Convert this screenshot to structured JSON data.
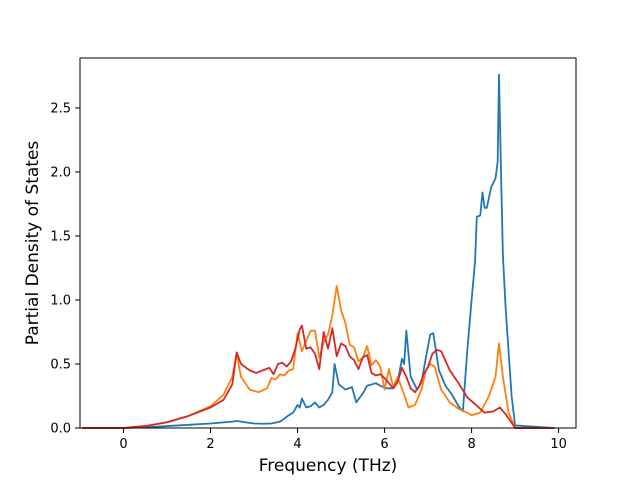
{
  "chart_data": {
    "type": "line",
    "xlabel": "Frequency (THz)",
    "ylabel": "Partial Density of States",
    "xlim": [
      -1.0,
      10.4
    ],
    "ylim": [
      0.0,
      2.89
    ],
    "xticks": [
      0,
      2,
      4,
      6,
      8,
      10
    ],
    "yticks": [
      0.0,
      0.5,
      1.0,
      1.5,
      2.0,
      2.5
    ],
    "xtick_labels": [
      "0",
      "2",
      "4",
      "6",
      "8",
      "10"
    ],
    "ytick_labels": [
      "0.0",
      "0.5",
      "1.0",
      "1.5",
      "2.0",
      "2.5"
    ],
    "grid": false,
    "legend": false,
    "series": [
      {
        "color": "#1f77b4",
        "points": [
          [
            -0.95,
            0.0
          ],
          [
            0.0,
            0.0
          ],
          [
            0.5,
            0.005
          ],
          [
            1.0,
            0.015
          ],
          [
            1.5,
            0.025
          ],
          [
            2.0,
            0.035
          ],
          [
            2.5,
            0.05
          ],
          [
            2.6,
            0.055
          ],
          [
            2.8,
            0.045
          ],
          [
            3.0,
            0.035
          ],
          [
            3.2,
            0.033
          ],
          [
            3.4,
            0.035
          ],
          [
            3.6,
            0.05
          ],
          [
            3.8,
            0.1
          ],
          [
            3.9,
            0.12
          ],
          [
            4.0,
            0.18
          ],
          [
            4.05,
            0.16
          ],
          [
            4.1,
            0.23
          ],
          [
            4.2,
            0.16
          ],
          [
            4.3,
            0.17
          ],
          [
            4.4,
            0.2
          ],
          [
            4.5,
            0.16
          ],
          [
            4.6,
            0.18
          ],
          [
            4.7,
            0.22
          ],
          [
            4.8,
            0.28
          ],
          [
            4.85,
            0.5
          ],
          [
            4.95,
            0.34
          ],
          [
            5.1,
            0.3
          ],
          [
            5.25,
            0.32
          ],
          [
            5.35,
            0.2
          ],
          [
            5.5,
            0.27
          ],
          [
            5.6,
            0.33
          ],
          [
            5.8,
            0.35
          ],
          [
            5.9,
            0.33
          ],
          [
            6.05,
            0.31
          ],
          [
            6.2,
            0.31
          ],
          [
            6.3,
            0.36
          ],
          [
            6.4,
            0.54
          ],
          [
            6.45,
            0.5
          ],
          [
            6.5,
            0.76
          ],
          [
            6.6,
            0.4
          ],
          [
            6.75,
            0.3
          ],
          [
            6.85,
            0.36
          ],
          [
            6.95,
            0.55
          ],
          [
            7.05,
            0.73
          ],
          [
            7.12,
            0.74
          ],
          [
            7.25,
            0.45
          ],
          [
            7.4,
            0.33
          ],
          [
            7.55,
            0.26
          ],
          [
            7.7,
            0.17
          ],
          [
            7.8,
            0.13
          ],
          [
            7.9,
            0.6
          ],
          [
            8.0,
            1.0
          ],
          [
            8.08,
            1.3
          ],
          [
            8.12,
            1.65
          ],
          [
            8.2,
            1.66
          ],
          [
            8.25,
            1.84
          ],
          [
            8.3,
            1.72
          ],
          [
            8.35,
            1.72
          ],
          [
            8.45,
            1.88
          ],
          [
            8.55,
            1.95
          ],
          [
            8.6,
            2.08
          ],
          [
            8.63,
            2.76
          ],
          [
            8.68,
            1.95
          ],
          [
            8.72,
            1.35
          ],
          [
            8.78,
            0.95
          ],
          [
            8.85,
            0.6
          ],
          [
            8.92,
            0.25
          ],
          [
            9.0,
            0.02
          ],
          [
            9.9,
            0.0
          ]
        ]
      },
      {
        "color": "#ff7f0e",
        "points": [
          [
            -0.95,
            0.0
          ],
          [
            0.0,
            0.0
          ],
          [
            0.5,
            0.015
          ],
          [
            1.0,
            0.045
          ],
          [
            1.5,
            0.095
          ],
          [
            2.0,
            0.17
          ],
          [
            2.3,
            0.26
          ],
          [
            2.5,
            0.4
          ],
          [
            2.6,
            0.58
          ],
          [
            2.7,
            0.4
          ],
          [
            2.9,
            0.3
          ],
          [
            3.1,
            0.28
          ],
          [
            3.3,
            0.31
          ],
          [
            3.4,
            0.39
          ],
          [
            3.5,
            0.38
          ],
          [
            3.6,
            0.42
          ],
          [
            3.7,
            0.41
          ],
          [
            3.8,
            0.45
          ],
          [
            3.9,
            0.46
          ],
          [
            4.0,
            0.74
          ],
          [
            4.1,
            0.6
          ],
          [
            4.2,
            0.68
          ],
          [
            4.3,
            0.76
          ],
          [
            4.4,
            0.76
          ],
          [
            4.5,
            0.55
          ],
          [
            4.6,
            0.67
          ],
          [
            4.7,
            0.73
          ],
          [
            4.8,
            0.88
          ],
          [
            4.9,
            1.11
          ],
          [
            5.0,
            0.92
          ],
          [
            5.1,
            0.82
          ],
          [
            5.2,
            0.65
          ],
          [
            5.3,
            0.63
          ],
          [
            5.4,
            0.52
          ],
          [
            5.5,
            0.55
          ],
          [
            5.6,
            0.64
          ],
          [
            5.7,
            0.49
          ],
          [
            5.8,
            0.53
          ],
          [
            5.9,
            0.48
          ],
          [
            6.0,
            0.3
          ],
          [
            6.1,
            0.46
          ],
          [
            6.2,
            0.32
          ],
          [
            6.3,
            0.4
          ],
          [
            6.45,
            0.26
          ],
          [
            6.55,
            0.16
          ],
          [
            6.7,
            0.18
          ],
          [
            6.85,
            0.3
          ],
          [
            6.95,
            0.45
          ],
          [
            7.05,
            0.5
          ],
          [
            7.15,
            0.48
          ],
          [
            7.3,
            0.3
          ],
          [
            7.5,
            0.2
          ],
          [
            7.7,
            0.15
          ],
          [
            7.9,
            0.12
          ],
          [
            8.0,
            0.1
          ],
          [
            8.2,
            0.12
          ],
          [
            8.4,
            0.25
          ],
          [
            8.55,
            0.4
          ],
          [
            8.63,
            0.66
          ],
          [
            8.72,
            0.4
          ],
          [
            8.85,
            0.12
          ],
          [
            9.0,
            0.0
          ],
          [
            9.9,
            0.0
          ]
        ]
      },
      {
        "color": "#d62728",
        "points": [
          [
            -0.95,
            0.0
          ],
          [
            0.0,
            0.0
          ],
          [
            0.5,
            0.015
          ],
          [
            1.0,
            0.045
          ],
          [
            1.5,
            0.095
          ],
          [
            2.0,
            0.16
          ],
          [
            2.3,
            0.22
          ],
          [
            2.5,
            0.34
          ],
          [
            2.6,
            0.59
          ],
          [
            2.7,
            0.5
          ],
          [
            2.9,
            0.45
          ],
          [
            3.05,
            0.43
          ],
          [
            3.2,
            0.45
          ],
          [
            3.35,
            0.47
          ],
          [
            3.45,
            0.42
          ],
          [
            3.55,
            0.5
          ],
          [
            3.65,
            0.51
          ],
          [
            3.75,
            0.48
          ],
          [
            3.85,
            0.52
          ],
          [
            3.95,
            0.62
          ],
          [
            4.05,
            0.77
          ],
          [
            4.1,
            0.8
          ],
          [
            4.2,
            0.62
          ],
          [
            4.3,
            0.63
          ],
          [
            4.4,
            0.58
          ],
          [
            4.5,
            0.46
          ],
          [
            4.6,
            0.75
          ],
          [
            4.7,
            0.62
          ],
          [
            4.8,
            0.78
          ],
          [
            4.9,
            0.56
          ],
          [
            5.0,
            0.66
          ],
          [
            5.1,
            0.64
          ],
          [
            5.2,
            0.56
          ],
          [
            5.3,
            0.53
          ],
          [
            5.4,
            0.46
          ],
          [
            5.5,
            0.55
          ],
          [
            5.6,
            0.57
          ],
          [
            5.7,
            0.43
          ],
          [
            5.8,
            0.41
          ],
          [
            5.9,
            0.42
          ],
          [
            6.0,
            0.39
          ],
          [
            6.1,
            0.35
          ],
          [
            6.2,
            0.31
          ],
          [
            6.3,
            0.36
          ],
          [
            6.4,
            0.47
          ],
          [
            6.5,
            0.4
          ],
          [
            6.6,
            0.31
          ],
          [
            6.7,
            0.28
          ],
          [
            6.8,
            0.33
          ],
          [
            6.9,
            0.42
          ],
          [
            7.0,
            0.48
          ],
          [
            7.1,
            0.58
          ],
          [
            7.2,
            0.61
          ],
          [
            7.3,
            0.6
          ],
          [
            7.5,
            0.45
          ],
          [
            7.7,
            0.35
          ],
          [
            7.9,
            0.24
          ],
          [
            8.1,
            0.18
          ],
          [
            8.3,
            0.12
          ],
          [
            8.5,
            0.13
          ],
          [
            8.65,
            0.16
          ],
          [
            8.8,
            0.1
          ],
          [
            9.0,
            0.0
          ],
          [
            9.9,
            0.0
          ]
        ]
      }
    ]
  }
}
